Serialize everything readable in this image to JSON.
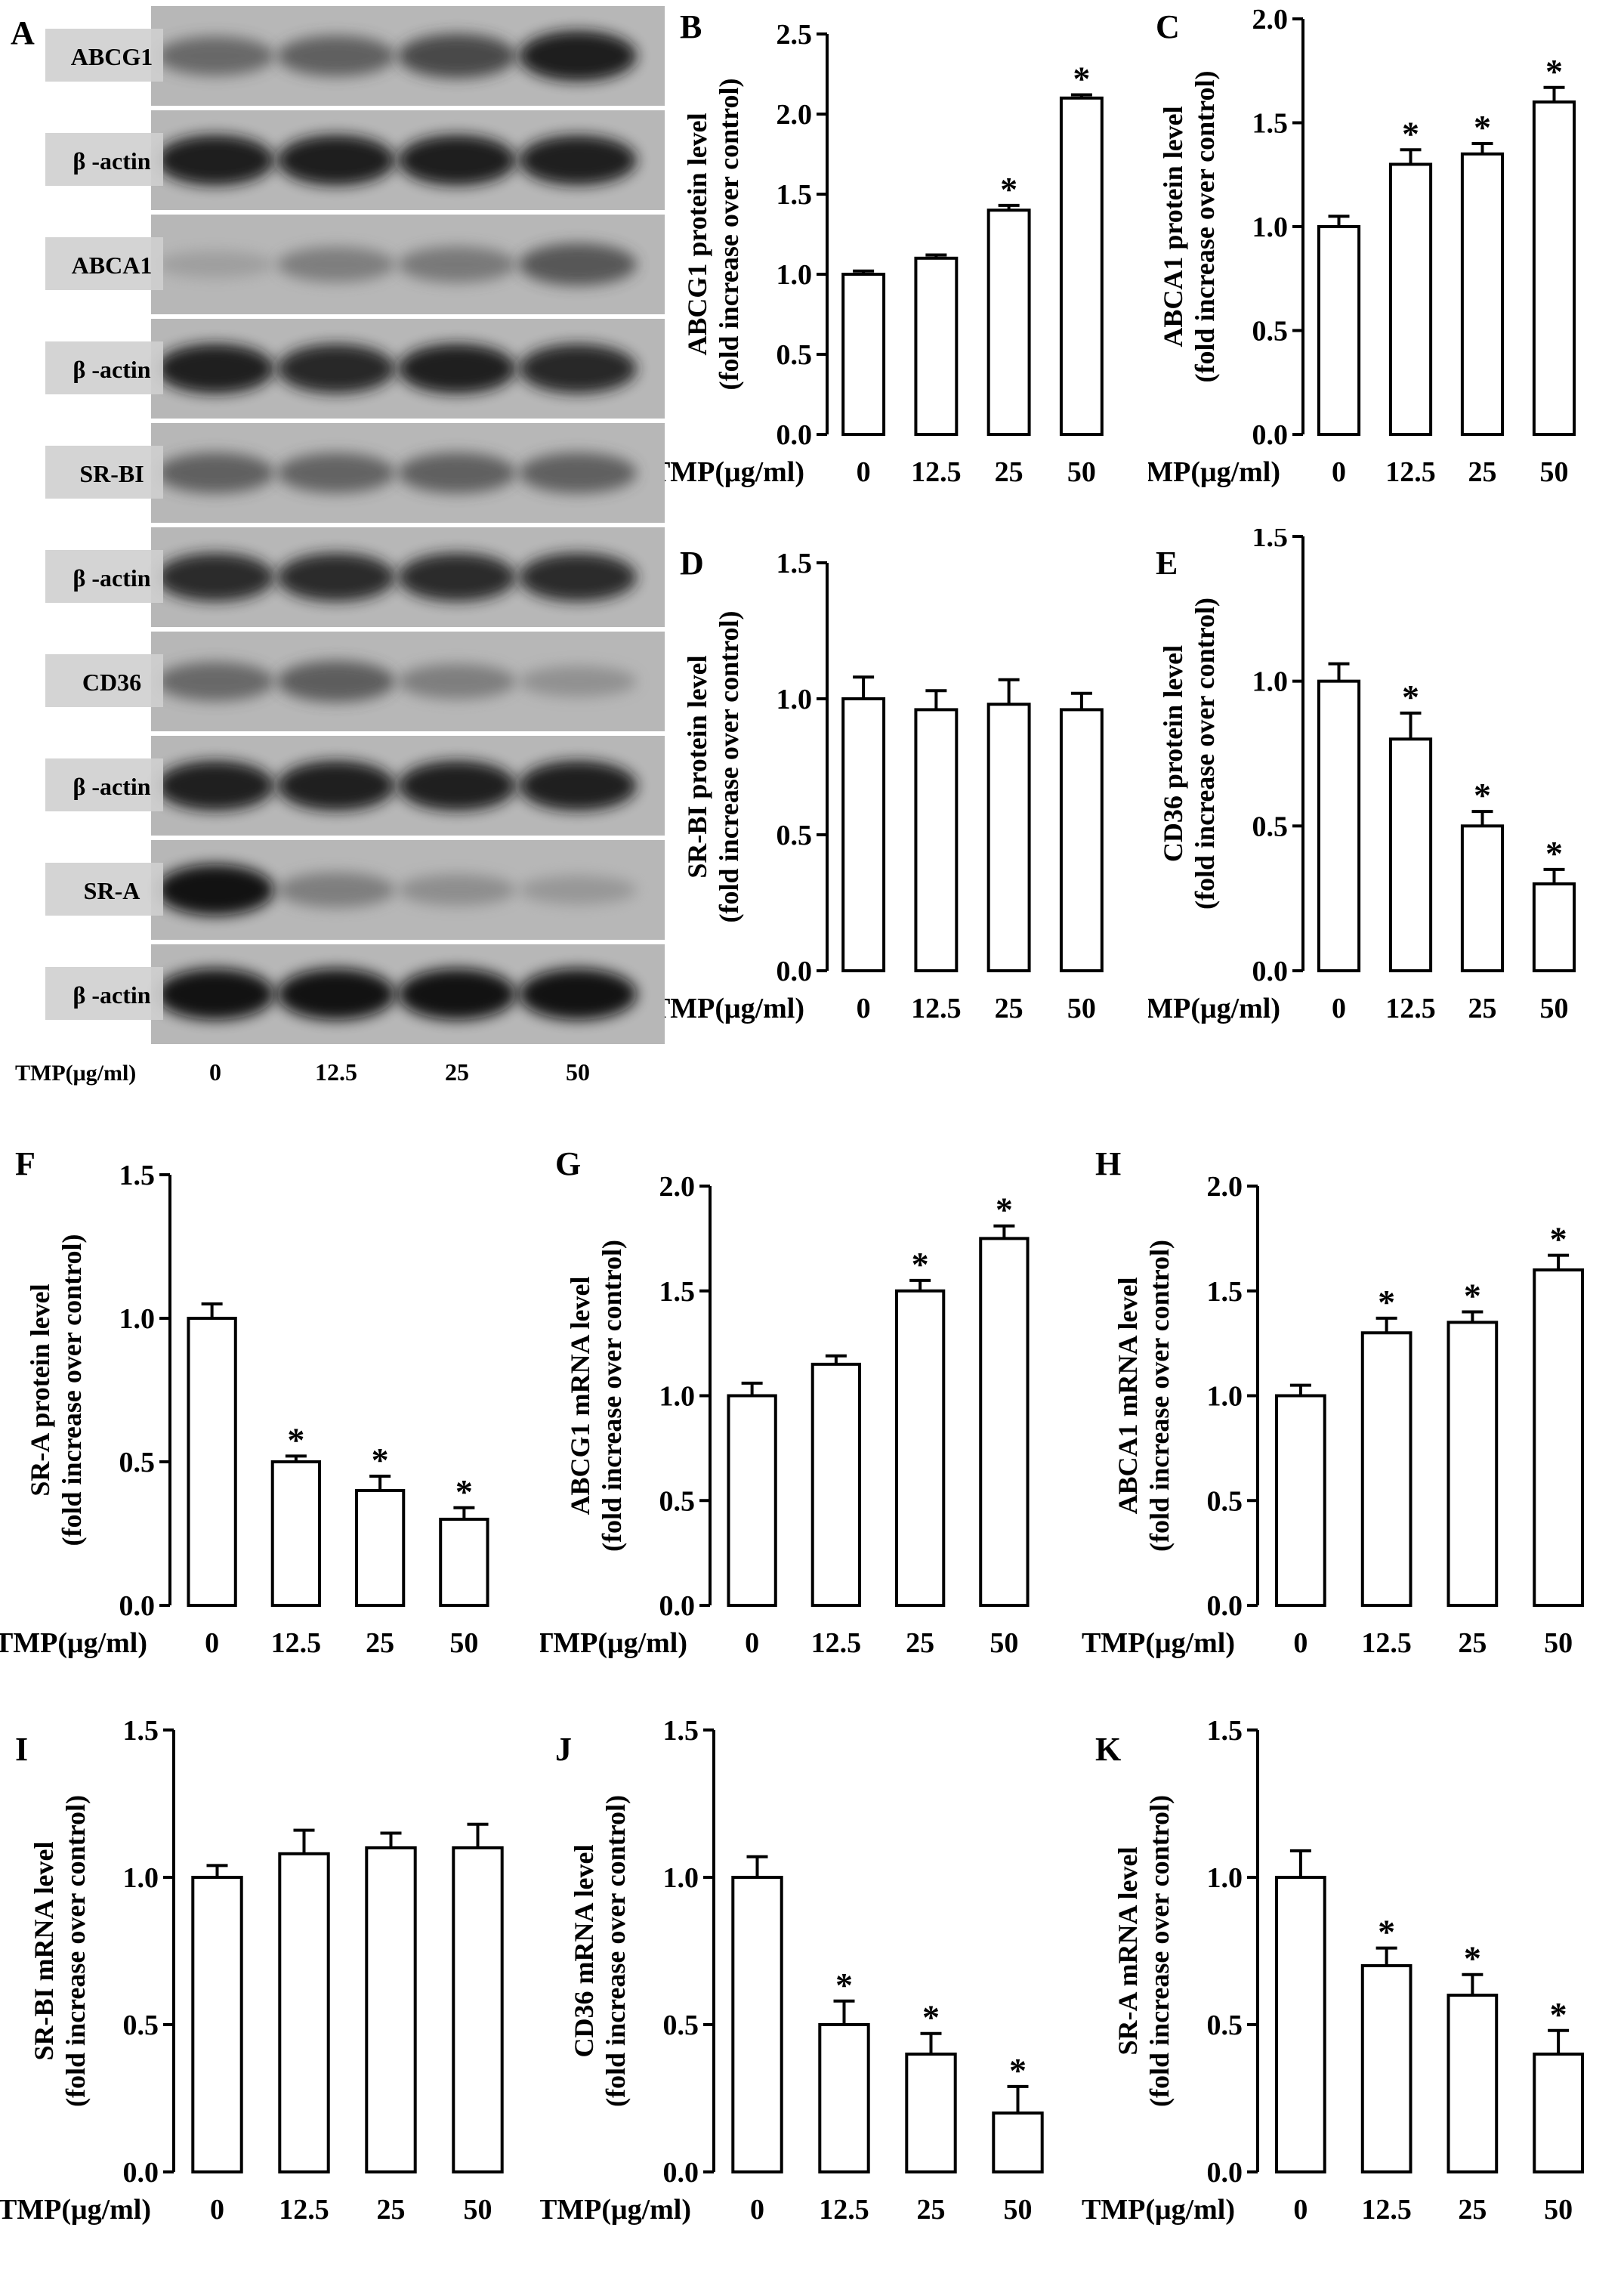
{
  "blot": {
    "panel_label": "A",
    "rows": [
      {
        "label": "ABCG1",
        "intensity": [
          0.55,
          0.6,
          0.72,
          0.92
        ]
      },
      {
        "label": "β -actin",
        "intensity": [
          0.92,
          0.92,
          0.92,
          0.9
        ]
      },
      {
        "label": "ABCA1",
        "intensity": [
          0.15,
          0.42,
          0.45,
          0.65
        ]
      },
      {
        "label": "β -actin",
        "intensity": [
          0.9,
          0.88,
          0.9,
          0.88
        ]
      },
      {
        "label": "SR-BI",
        "intensity": [
          0.6,
          0.58,
          0.6,
          0.6
        ]
      },
      {
        "label": "β -actin",
        "intensity": [
          0.85,
          0.85,
          0.85,
          0.85
        ]
      },
      {
        "label": "CD36",
        "intensity": [
          0.55,
          0.62,
          0.42,
          0.28
        ]
      },
      {
        "label": "β -actin",
        "intensity": [
          0.9,
          0.9,
          0.9,
          0.9
        ]
      },
      {
        "label": "SR-A",
        "intensity": [
          0.95,
          0.42,
          0.3,
          0.22
        ]
      },
      {
        "label": "β -actin",
        "intensity": [
          0.95,
          0.95,
          0.95,
          0.95
        ]
      }
    ],
    "x_prefix": "TMP(μg/ml)",
    "x_labels": [
      "0",
      "12.5",
      "25",
      "50"
    ]
  },
  "chart_data": [
    {
      "type": "bar",
      "panel": "B",
      "ylabel_1": "ABCG1 protein level",
      "ylabel_2": "(fold increase over control)",
      "x_prefix": "TMP(μg/ml)",
      "categories": [
        "0",
        "12.5",
        "25",
        "50"
      ],
      "values": [
        1.0,
        1.1,
        1.4,
        2.1
      ],
      "errors": [
        0.02,
        0.02,
        0.03,
        0.02
      ],
      "significant": [
        false,
        false,
        true,
        true
      ],
      "ylim": [
        0,
        2.5
      ],
      "yticks": [
        "0.0",
        "0.5",
        "1.0",
        "1.5",
        "2.0",
        "2.5"
      ]
    },
    {
      "type": "bar",
      "panel": "C",
      "ylabel_1": "ABCA1 protein level",
      "ylabel_2": "(fold increase over control)",
      "x_prefix": "TMP(μg/ml)",
      "categories": [
        "0",
        "12.5",
        "25",
        "50"
      ],
      "values": [
        1.0,
        1.3,
        1.35,
        1.6
      ],
      "errors": [
        0.05,
        0.07,
        0.05,
        0.07
      ],
      "significant": [
        false,
        true,
        true,
        true
      ],
      "ylim": [
        0,
        2.0
      ],
      "yticks": [
        "0.0",
        "0.5",
        "1.0",
        "1.5",
        "2.0"
      ]
    },
    {
      "type": "bar",
      "panel": "D",
      "ylabel_1": "SR-BI   protein level",
      "ylabel_2": "(fold increase over control)",
      "x_prefix": "TMP(μg/ml)",
      "categories": [
        "0",
        "12.5",
        "25",
        "50"
      ],
      "values": [
        1.0,
        0.96,
        0.98,
        0.96
      ],
      "errors": [
        0.08,
        0.07,
        0.09,
        0.06
      ],
      "significant": [
        false,
        false,
        false,
        false
      ],
      "ylim": [
        0,
        1.5
      ],
      "yticks": [
        "0.0",
        "0.5",
        "1.0",
        "1.5"
      ]
    },
    {
      "type": "bar",
      "panel": "E",
      "ylabel_1": "CD36 protein level",
      "ylabel_2": "(fold increase over control)",
      "x_prefix": "TMP(μg/ml)",
      "categories": [
        "0",
        "12.5",
        "25",
        "50"
      ],
      "values": [
        1.0,
        0.8,
        0.5,
        0.3
      ],
      "errors": [
        0.06,
        0.09,
        0.05,
        0.05
      ],
      "significant": [
        false,
        true,
        true,
        true
      ],
      "ylim": [
        0,
        1.5
      ],
      "yticks": [
        "0.0",
        "0.5",
        "1.0",
        "1.5"
      ]
    },
    {
      "type": "bar",
      "panel": "F",
      "ylabel_1": "SR-A protein level",
      "ylabel_2": "(fold increase over control)",
      "x_prefix": "TMP(μg/ml)",
      "categories": [
        "0",
        "12.5",
        "25",
        "50"
      ],
      "values": [
        1.0,
        0.5,
        0.4,
        0.3
      ],
      "errors": [
        0.05,
        0.02,
        0.05,
        0.04
      ],
      "significant": [
        false,
        true,
        true,
        true
      ],
      "ylim": [
        0,
        1.5
      ],
      "yticks": [
        "0.0",
        "0.5",
        "1.0",
        "1.5"
      ]
    },
    {
      "type": "bar",
      "panel": "G",
      "ylabel_1": "ABCG1 mRNA level",
      "ylabel_2": "(fold increase over control)",
      "x_prefix": "TMP(μg/ml)",
      "categories": [
        "0",
        "12.5",
        "25",
        "50"
      ],
      "values": [
        1.0,
        1.15,
        1.5,
        1.75
      ],
      "errors": [
        0.06,
        0.04,
        0.05,
        0.06
      ],
      "significant": [
        false,
        false,
        true,
        true
      ],
      "ylim": [
        0,
        2.0
      ],
      "yticks": [
        "0.0",
        "0.5",
        "1.0",
        "1.5",
        "2.0"
      ]
    },
    {
      "type": "bar",
      "panel": "H",
      "ylabel_1": "ABCA1 mRNA level",
      "ylabel_2": "(fold increase over control)",
      "x_prefix": "TMP(μg/ml)",
      "categories": [
        "0",
        "12.5",
        "25",
        "50"
      ],
      "values": [
        1.0,
        1.3,
        1.35,
        1.6
      ],
      "errors": [
        0.05,
        0.07,
        0.05,
        0.07
      ],
      "significant": [
        false,
        true,
        true,
        true
      ],
      "ylim": [
        0,
        2.0
      ],
      "yticks": [
        "0.0",
        "0.5",
        "1.0",
        "1.5",
        "2.0"
      ]
    },
    {
      "type": "bar",
      "panel": "I",
      "ylabel_1": "SR-BI   mRNA level",
      "ylabel_2": "(fold increase over control)",
      "x_prefix": "TMP(μg/ml)",
      "categories": [
        "0",
        "12.5",
        "25",
        "50"
      ],
      "values": [
        1.0,
        1.08,
        1.1,
        1.1
      ],
      "errors": [
        0.04,
        0.08,
        0.05,
        0.08
      ],
      "significant": [
        false,
        false,
        false,
        false
      ],
      "ylim": [
        0,
        1.5
      ],
      "yticks": [
        "0.0",
        "0.5",
        "1.0",
        "1.5"
      ]
    },
    {
      "type": "bar",
      "panel": "J",
      "ylabel_1": "CD36 mRNA level",
      "ylabel_2": "(fold increase over control)",
      "x_prefix": "TMP(μg/ml)",
      "categories": [
        "0",
        "12.5",
        "25",
        "50"
      ],
      "values": [
        1.0,
        0.5,
        0.4,
        0.2
      ],
      "errors": [
        0.07,
        0.08,
        0.07,
        0.09
      ],
      "significant": [
        false,
        true,
        true,
        true
      ],
      "ylim": [
        0,
        1.5
      ],
      "yticks": [
        "0.0",
        "0.5",
        "1.0",
        "1.5"
      ]
    },
    {
      "type": "bar",
      "panel": "K",
      "ylabel_1": "SR-A mRNA level",
      "ylabel_2": "(fold increase over control)",
      "x_prefix": "TMP(μg/ml)",
      "categories": [
        "0",
        "12.5",
        "25",
        "50"
      ],
      "values": [
        1.0,
        0.7,
        0.6,
        0.4
      ],
      "errors": [
        0.09,
        0.06,
        0.07,
        0.08
      ],
      "significant": [
        false,
        true,
        true,
        true
      ],
      "ylim": [
        0,
        1.5
      ],
      "yticks": [
        "0.0",
        "0.5",
        "1.0",
        "1.5"
      ]
    }
  ]
}
